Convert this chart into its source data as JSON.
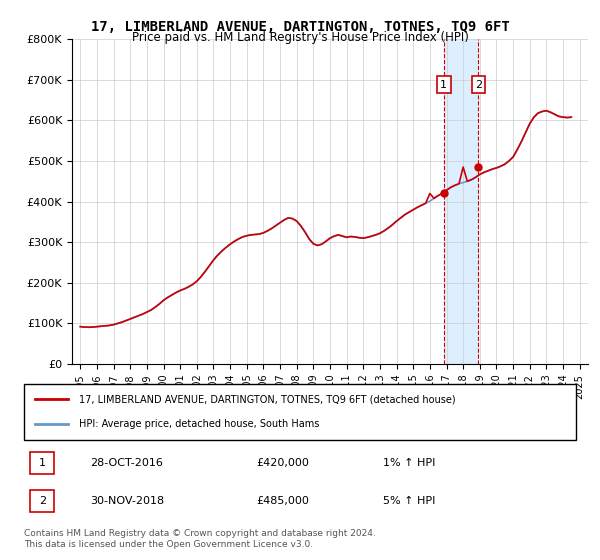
{
  "title": "17, LIMBERLAND AVENUE, DARTINGTON, TOTNES, TQ9 6FT",
  "subtitle": "Price paid vs. HM Land Registry's House Price Index (HPI)",
  "ylabel_ticks": [
    "£0",
    "£100K",
    "£200K",
    "£300K",
    "£400K",
    "£500K",
    "£600K",
    "£700K",
    "£800K"
  ],
  "ytick_vals": [
    0,
    100000,
    200000,
    300000,
    400000,
    500000,
    600000,
    700000,
    800000
  ],
  "ylim": [
    0,
    800000
  ],
  "xlim_start": 1995.0,
  "xlim_end": 2025.5,
  "xtick_years": [
    1995,
    1996,
    1997,
    1998,
    1999,
    2000,
    2001,
    2002,
    2003,
    2004,
    2005,
    2006,
    2007,
    2008,
    2009,
    2010,
    2011,
    2012,
    2013,
    2014,
    2015,
    2016,
    2017,
    2018,
    2019,
    2020,
    2021,
    2022,
    2023,
    2024,
    2025
  ],
  "hpi_years": [
    1995.0,
    1995.25,
    1995.5,
    1995.75,
    1996.0,
    1996.25,
    1996.5,
    1996.75,
    1997.0,
    1997.25,
    1997.5,
    1997.75,
    1998.0,
    1998.25,
    1998.5,
    1998.75,
    1999.0,
    1999.25,
    1999.5,
    1999.75,
    2000.0,
    2000.25,
    2000.5,
    2000.75,
    2001.0,
    2001.25,
    2001.5,
    2001.75,
    2002.0,
    2002.25,
    2002.5,
    2002.75,
    2003.0,
    2003.25,
    2003.5,
    2003.75,
    2004.0,
    2004.25,
    2004.5,
    2004.75,
    2005.0,
    2005.25,
    2005.5,
    2005.75,
    2006.0,
    2006.25,
    2006.5,
    2006.75,
    2007.0,
    2007.25,
    2007.5,
    2007.75,
    2008.0,
    2008.25,
    2008.5,
    2008.75,
    2009.0,
    2009.25,
    2009.5,
    2009.75,
    2010.0,
    2010.25,
    2010.5,
    2010.75,
    2011.0,
    2011.25,
    2011.5,
    2011.75,
    2012.0,
    2012.25,
    2012.5,
    2012.75,
    2013.0,
    2013.25,
    2013.5,
    2013.75,
    2014.0,
    2014.25,
    2014.5,
    2014.75,
    2015.0,
    2015.25,
    2015.5,
    2015.75,
    2016.0,
    2016.25,
    2016.5,
    2016.75,
    2017.0,
    2017.25,
    2017.5,
    2017.75,
    2018.0,
    2018.25,
    2018.5,
    2018.75,
    2019.0,
    2019.25,
    2019.5,
    2019.75,
    2020.0,
    2020.25,
    2020.5,
    2020.75,
    2021.0,
    2021.25,
    2021.5,
    2021.75,
    2022.0,
    2022.25,
    2022.5,
    2022.75,
    2023.0,
    2023.25,
    2023.5,
    2023.75,
    2024.0,
    2024.25,
    2024.5
  ],
  "hpi_values": [
    92000,
    91000,
    90500,
    91000,
    92000,
    93000,
    94000,
    95000,
    97000,
    100000,
    103000,
    107000,
    111000,
    115000,
    119000,
    123000,
    128000,
    133000,
    140000,
    148000,
    157000,
    164000,
    170000,
    176000,
    181000,
    185000,
    190000,
    196000,
    204000,
    215000,
    228000,
    242000,
    256000,
    268000,
    278000,
    287000,
    295000,
    302000,
    308000,
    313000,
    316000,
    318000,
    319000,
    320000,
    323000,
    328000,
    334000,
    341000,
    348000,
    355000,
    360000,
    358000,
    352000,
    340000,
    325000,
    308000,
    296000,
    292000,
    295000,
    302000,
    310000,
    315000,
    318000,
    315000,
    312000,
    314000,
    313000,
    311000,
    310000,
    312000,
    315000,
    318000,
    322000,
    328000,
    335000,
    343000,
    352000,
    360000,
    368000,
    374000,
    380000,
    386000,
    391000,
    396000,
    401000,
    408000,
    415000,
    420000,
    428000,
    435000,
    440000,
    444000,
    447000,
    450000,
    454000,
    460000,
    467000,
    472000,
    476000,
    480000,
    483000,
    487000,
    492000,
    500000,
    510000,
    528000,
    548000,
    570000,
    592000,
    608000,
    618000,
    622000,
    624000,
    620000,
    615000,
    610000,
    608000,
    607000,
    608000
  ],
  "red_years": [
    1995.0,
    1995.25,
    1995.5,
    1995.75,
    1996.0,
    1996.25,
    1996.5,
    1996.75,
    1997.0,
    1997.25,
    1997.5,
    1997.75,
    1998.0,
    1998.25,
    1998.5,
    1998.75,
    1999.0,
    1999.25,
    1999.5,
    1999.75,
    2000.0,
    2000.25,
    2000.5,
    2000.75,
    2001.0,
    2001.25,
    2001.5,
    2001.75,
    2002.0,
    2002.25,
    2002.5,
    2002.75,
    2003.0,
    2003.25,
    2003.5,
    2003.75,
    2004.0,
    2004.25,
    2004.5,
    2004.75,
    2005.0,
    2005.25,
    2005.5,
    2005.75,
    2006.0,
    2006.25,
    2006.5,
    2006.75,
    2007.0,
    2007.25,
    2007.5,
    2007.75,
    2008.0,
    2008.25,
    2008.5,
    2008.75,
    2009.0,
    2009.25,
    2009.5,
    2009.75,
    2010.0,
    2010.25,
    2010.5,
    2010.75,
    2011.0,
    2011.25,
    2011.5,
    2011.75,
    2012.0,
    2012.25,
    2012.5,
    2012.75,
    2013.0,
    2013.25,
    2013.5,
    2013.75,
    2014.0,
    2014.25,
    2014.5,
    2014.75,
    2015.0,
    2015.25,
    2015.5,
    2015.75,
    2016.0,
    2016.25,
    2016.5,
    2016.75,
    2017.0,
    2017.25,
    2017.5,
    2017.75,
    2018.0,
    2018.25,
    2018.5,
    2018.75,
    2019.0,
    2019.25,
    2019.5,
    2019.75,
    2020.0,
    2020.25,
    2020.5,
    2020.75,
    2021.0,
    2021.25,
    2021.5,
    2021.75,
    2022.0,
    2022.25,
    2022.5,
    2022.75,
    2023.0,
    2023.25,
    2023.5,
    2023.75,
    2024.0,
    2024.25,
    2024.5
  ],
  "red_values": [
    92000,
    91000,
    90500,
    91000,
    92000,
    93000,
    94000,
    95000,
    97000,
    100000,
    103000,
    107000,
    111000,
    115000,
    119000,
    123000,
    128000,
    133000,
    140000,
    148000,
    157000,
    164000,
    170000,
    176000,
    181000,
    185000,
    190000,
    196000,
    204000,
    215000,
    228000,
    242000,
    256000,
    268000,
    278000,
    287000,
    295000,
    302000,
    308000,
    313000,
    316000,
    318000,
    319000,
    320000,
    323000,
    328000,
    334000,
    341000,
    348000,
    355000,
    360000,
    358000,
    352000,
    340000,
    325000,
    308000,
    296000,
    292000,
    295000,
    302000,
    310000,
    315000,
    318000,
    315000,
    312000,
    314000,
    313000,
    311000,
    310000,
    312000,
    315000,
    318000,
    322000,
    328000,
    335000,
    343000,
    352000,
    360000,
    368000,
    374000,
    380000,
    386000,
    391000,
    396000,
    420000,
    408000,
    415000,
    420000,
    428000,
    435000,
    440000,
    444000,
    485000,
    450000,
    454000,
    460000,
    467000,
    472000,
    476000,
    480000,
    483000,
    487000,
    492000,
    500000,
    510000,
    528000,
    548000,
    570000,
    592000,
    608000,
    618000,
    622000,
    624000,
    620000,
    615000,
    610000,
    608000,
    607000,
    608000
  ],
  "sale1_x": 2016.83,
  "sale1_y": 420000,
  "sale1_label": "1",
  "sale2_x": 2018.92,
  "sale2_y": 485000,
  "sale2_label": "2",
  "legend_line1": "17, LIMBERLAND AVENUE, DARTINGTON, TOTNES, TQ9 6FT (detached house)",
  "legend_line2": "HPI: Average price, detached house, South Hams",
  "table_row1_num": "1",
  "table_row1_date": "28-OCT-2016",
  "table_row1_price": "£420,000",
  "table_row1_hpi": "1% ↑ HPI",
  "table_row2_num": "2",
  "table_row2_date": "30-NOV-2018",
  "table_row2_price": "£485,000",
  "table_row2_hpi": "5% ↑ HPI",
  "footnote": "Contains HM Land Registry data © Crown copyright and database right 2024.\nThis data is licensed under the Open Government Licence v3.0.",
  "line_color_red": "#cc0000",
  "line_color_blue": "#6699cc",
  "highlight_color": "#ddeeff",
  "marker_box_color": "#cc0000",
  "grid_color": "#cccccc",
  "bg_color": "#ffffff"
}
